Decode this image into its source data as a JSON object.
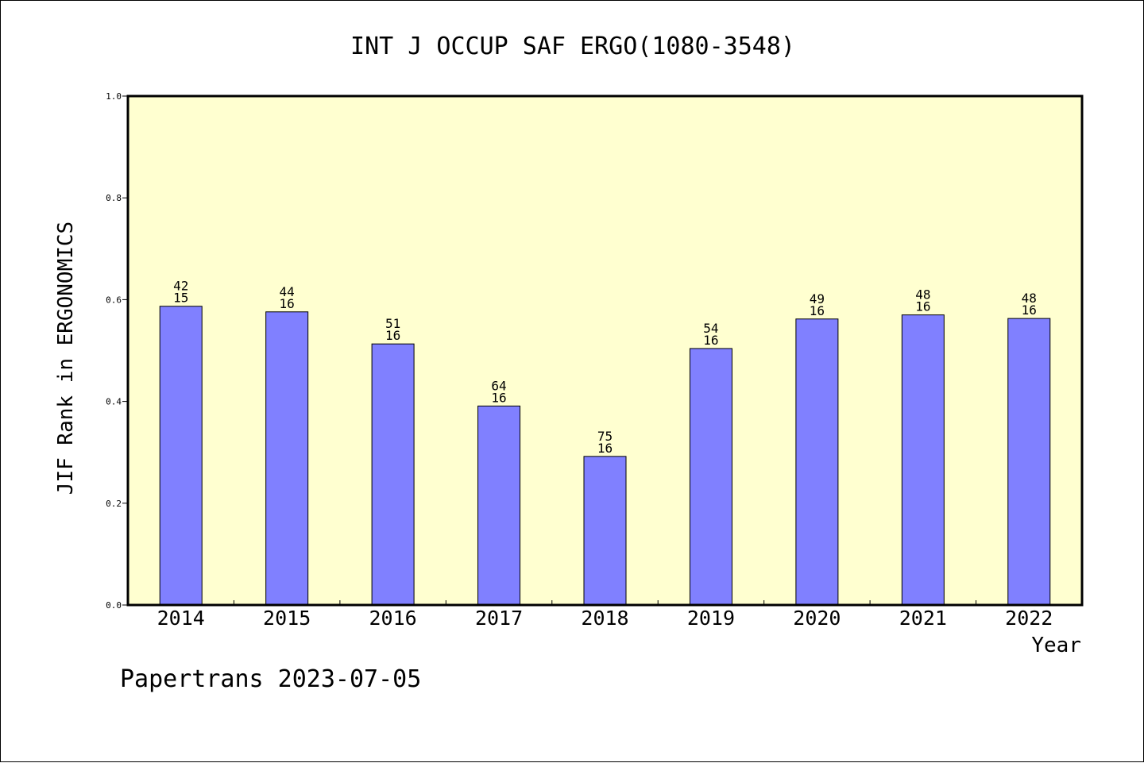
{
  "chart_data": {
    "type": "bar",
    "title": "INT J OCCUP SAF ERGO(1080-3548)",
    "xlabel": "Year",
    "ylabel": "JIF Rank in ERGONOMICS",
    "ylim": [
      0,
      1.0
    ],
    "yticks": [
      "0.0",
      "0.2",
      "0.4",
      "0.6",
      "0.8",
      "1.0"
    ],
    "categories": [
      "2014",
      "2015",
      "2016",
      "2017",
      "2018",
      "2019",
      "2020",
      "2021",
      "2022"
    ],
    "values": [
      0.587,
      0.576,
      0.513,
      0.391,
      0.292,
      0.504,
      0.562,
      0.57,
      0.563
    ],
    "labels": [
      [
        "42",
        "15"
      ],
      [
        "44",
        "16"
      ],
      [
        "51",
        "16"
      ],
      [
        "64",
        "16"
      ],
      [
        "75",
        "16"
      ],
      [
        "54",
        "16"
      ],
      [
        "49",
        "16"
      ],
      [
        "48",
        "16"
      ],
      [
        "48",
        "16"
      ]
    ],
    "grid": false,
    "colors": {
      "bar": "#8080ff",
      "plot_background": "#ffffd0"
    }
  },
  "footer": {
    "text": "Papertrans 2023-07-05"
  }
}
